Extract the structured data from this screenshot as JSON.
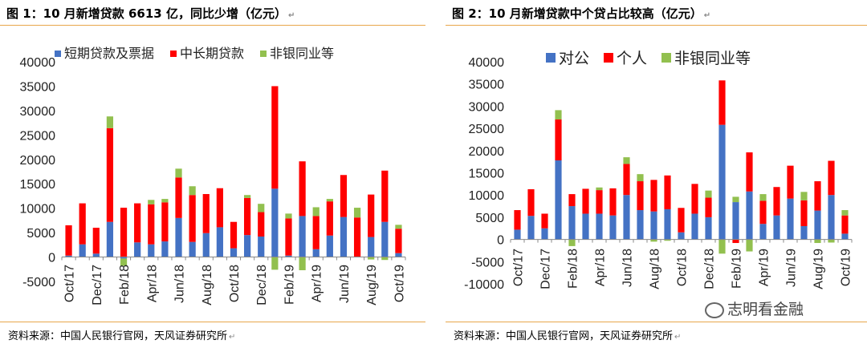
{
  "left": {
    "title": "图 1：10 月新增贷款 6613 亿，同比少增（亿元）",
    "source": "资料来源：中国人民银行官网，天风证券研究所"
  },
  "right": {
    "title": "图 2：10 月新增贷款中个贷占比较高（亿元）",
    "source": "资料来源：中国人民银行官网，天风证券研究所"
  },
  "watermark": "志明看金融",
  "edit_marks": {
    "paragraph": "↵",
    "pilcrow": "↲"
  },
  "colors": {
    "blue": "#4472c4",
    "red": "#ff0000",
    "green": "#92c04f",
    "rule": "#e8a64b"
  },
  "chart_data": [
    {
      "type": "bar",
      "stacked": true,
      "categories": [
        "Oct/17",
        "Nov/17",
        "Dec/17",
        "Jan/18",
        "Feb/18",
        "Mar/18",
        "Apr/18",
        "May/18",
        "Jun/18",
        "Jul/18",
        "Aug/18",
        "Sep/18",
        "Oct/18",
        "Nov/18",
        "Dec/18",
        "Jan/19",
        "Feb/19",
        "Mar/19",
        "Apr/19",
        "May/19",
        "Jun/19",
        "Jul/19",
        "Aug/19",
        "Sep/19",
        "Oct/19"
      ],
      "tick_labels": [
        "Oct/17",
        "Dec/17",
        "Feb/18",
        "Apr/18",
        "Jun/18",
        "Aug/18",
        "Oct/18",
        "Dec/18",
        "Feb/19",
        "Apr/19",
        "Jun/19",
        "Aug/19",
        "Oct/19"
      ],
      "ylim": [
        -5000,
        40000
      ],
      "yticks": [
        -5000,
        0,
        5000,
        10000,
        15000,
        20000,
        25000,
        30000,
        35000,
        40000
      ],
      "legend_position": "top",
      "series": [
        {
          "name": "短期贷款及票据",
          "color": "#4472c4",
          "values": [
            300,
            2600,
            700,
            7200,
            -300,
            3000,
            2600,
            3200,
            8000,
            3100,
            4900,
            6100,
            1800,
            4500,
            4200,
            14000,
            300,
            8400,
            1600,
            4400,
            8200,
            100,
            4100,
            7200,
            800
          ]
        },
        {
          "name": "中长期贷款",
          "color": "#ff0000",
          "values": [
            6200,
            8400,
            5300,
            19200,
            10100,
            8000,
            8200,
            8000,
            8300,
            9600,
            8000,
            8000,
            5400,
            7600,
            5000,
            21000,
            7600,
            11200,
            6800,
            7000,
            8600,
            8000,
            8700,
            10500,
            5000
          ]
        },
        {
          "name": "非银同业等",
          "color": "#92c04f",
          "values": [
            0,
            0,
            0,
            2400,
            -1500,
            0,
            900,
            700,
            1800,
            1800,
            0,
            0,
            0,
            600,
            1700,
            -2600,
            1000,
            -2700,
            1800,
            500,
            0,
            2000,
            -500,
            -600,
            800
          ]
        }
      ]
    },
    {
      "type": "bar",
      "stacked": true,
      "categories": [
        "Oct/17",
        "Nov/17",
        "Dec/17",
        "Jan/18",
        "Feb/18",
        "Mar/18",
        "Apr/18",
        "May/18",
        "Jun/18",
        "Jul/18",
        "Aug/18",
        "Sep/18",
        "Oct/18",
        "Nov/18",
        "Dec/18",
        "Jan/19",
        "Feb/19",
        "Mar/19",
        "Apr/19",
        "May/19",
        "Jun/19",
        "Jul/19",
        "Aug/19",
        "Sep/19",
        "Oct/19"
      ],
      "tick_labels": [
        "Oct/17",
        "Dec/17",
        "Feb/18",
        "Apr/18",
        "Jun/18",
        "Aug/18",
        "Oct/18",
        "Dec/18",
        "Feb/19",
        "Apr/19",
        "Jun/19",
        "Aug/19",
        "Oct/19"
      ],
      "ylim": [
        -10000,
        40000
      ],
      "yticks": [
        -10000,
        -5000,
        0,
        5000,
        10000,
        15000,
        20000,
        25000,
        30000,
        35000,
        40000
      ],
      "legend_position": "top",
      "series": [
        {
          "name": "对公",
          "color": "#4472c4",
          "values": [
            2200,
            5300,
            2500,
            17800,
            7500,
            5800,
            5800,
            5400,
            10000,
            6600,
            6300,
            6800,
            1600,
            5800,
            5000,
            25800,
            8400,
            10800,
            3500,
            5400,
            9200,
            3000,
            6500,
            10000,
            1300
          ]
        },
        {
          "name": "个人",
          "color": "#ff0000",
          "values": [
            4400,
            6000,
            3300,
            9200,
            2700,
            5600,
            5300,
            6100,
            7000,
            6500,
            7100,
            7600,
            5500,
            6700,
            4400,
            10000,
            -800,
            8800,
            5200,
            6400,
            7400,
            5800,
            6600,
            7700,
            4100
          ]
        },
        {
          "name": "非银同业等",
          "color": "#92c04f",
          "values": [
            0,
            0,
            0,
            2100,
            -1500,
            0,
            600,
            0,
            1500,
            1600,
            -500,
            -300,
            0,
            0,
            1600,
            -3200,
            1200,
            -2700,
            1500,
            0,
            0,
            1900,
            -800,
            -700,
            1200
          ]
        }
      ]
    }
  ]
}
